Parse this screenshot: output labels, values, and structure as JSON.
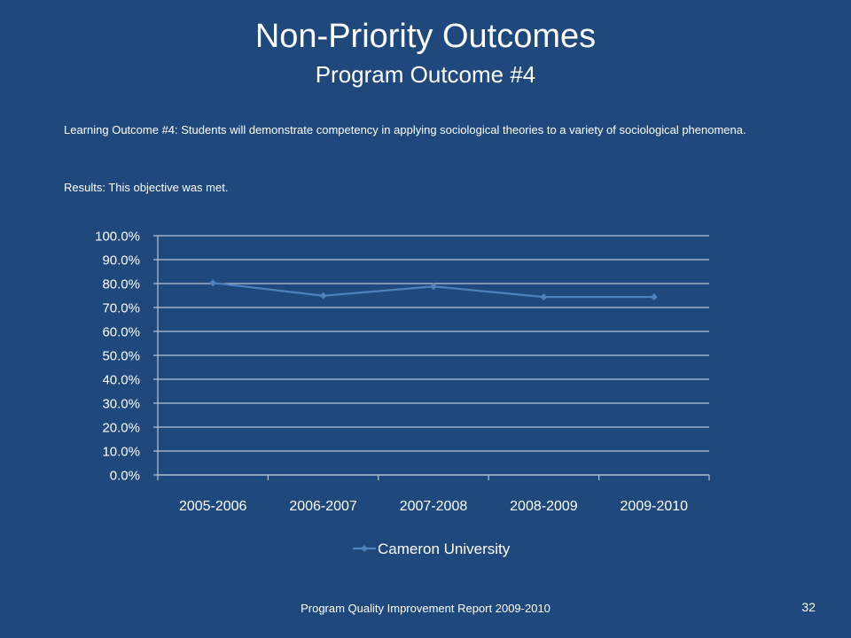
{
  "slide": {
    "title": "Non-Priority Outcomes",
    "subtitle": "Program Outcome #4",
    "outcome_text": "Learning Outcome #4: Students  will demonstrate competency in applying sociological theories to a variety of sociological phenomena.",
    "results_text": "Results: This objective was met.",
    "footer": "Program Quality Improvement Report 2009-2010",
    "page_number": "32"
  },
  "colors": {
    "background": "#1f497d",
    "series_line": "#4f81bd",
    "text": "#ffffff"
  },
  "chart_data": {
    "type": "line",
    "categories": [
      "2005-2006",
      "2006-2007",
      "2007-2008",
      "2008-2009",
      "2009-2010"
    ],
    "series": [
      {
        "name": "Cameron University",
        "values": [
          80.3,
          74.9,
          78.8,
          74.4,
          74.4
        ]
      }
    ],
    "ylim": [
      0,
      100
    ],
    "yticks": [
      "0.0%",
      "10.0%",
      "20.0%",
      "30.0%",
      "40.0%",
      "50.0%",
      "60.0%",
      "70.0%",
      "80.0%",
      "90.0%",
      "100.0%"
    ],
    "grid": true,
    "legend": "bottom",
    "marker": "diamond"
  }
}
